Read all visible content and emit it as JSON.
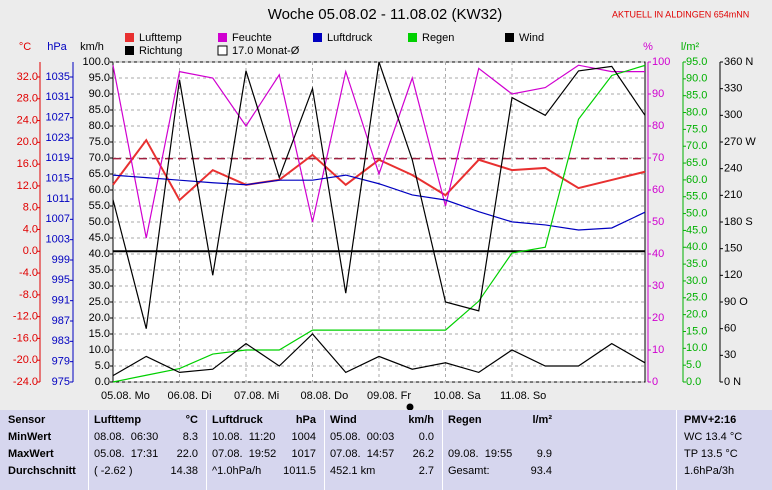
{
  "chart_data": {
    "type": "line",
    "title": "Woche 05.08.02 - 11.08.02 (KW32)",
    "note": "AKTUELL IN ALDINGEN 654mNN",
    "x": [
      0,
      0.5,
      1,
      1.5,
      2,
      2.5,
      3,
      3.5,
      4,
      4.5,
      5,
      5.5,
      6,
      6.5,
      7,
      7.5,
      8
    ],
    "xlim": [
      0,
      8
    ],
    "xticks": [
      {
        "value": 0,
        "label": "05.08. Mo"
      },
      {
        "value": 1,
        "label": "06.08. Di"
      },
      {
        "value": 2,
        "label": "07.08. Mi"
      },
      {
        "value": 3,
        "label": "08.08. Do"
      },
      {
        "value": 4,
        "label": "09.08. Fr"
      },
      {
        "value": 5,
        "label": "10.08. Sa"
      },
      {
        "value": 6,
        "label": "11.08. So"
      }
    ],
    "grid": true,
    "grid_axis": 2,
    "axes": [
      {
        "unit": "°C",
        "color": "#e00000",
        "lim": [
          -24,
          34.75
        ],
        "ticks": [
          {
            "value": 32,
            "label": "32.0"
          },
          {
            "value": 28,
            "label": "28.0"
          },
          {
            "value": 24,
            "label": "24.0"
          },
          {
            "value": 20,
            "label": "20.0"
          },
          {
            "value": 16,
            "label": "16.0"
          },
          {
            "value": 12,
            "label": "12.0"
          },
          {
            "value": 8,
            "label": "8.0"
          },
          {
            "value": 4,
            "label": "4.0"
          },
          {
            "value": 0,
            "label": "0.0"
          },
          {
            "value": -4,
            "label": "-4.0"
          },
          {
            "value": -8,
            "label": "-8.0"
          },
          {
            "value": -12,
            "label": "-12.0"
          },
          {
            "value": -16,
            "label": "-16.0"
          },
          {
            "value": -20,
            "label": "-20.0"
          },
          {
            "value": -24,
            "label": "-24.0"
          }
        ]
      },
      {
        "unit": "hPa",
        "color": "#0000c0",
        "lim": [
          975,
          1037.95
        ],
        "ticks": [
          1035,
          1031,
          1027,
          1023,
          1019,
          1015,
          1011,
          1007,
          1003,
          999,
          995,
          991,
          987,
          983,
          979,
          975
        ]
      },
      {
        "unit": "km/h",
        "color": "#000000",
        "lim": [
          0,
          100
        ],
        "ticks": [
          {
            "value": 100,
            "label": "100.0"
          },
          {
            "value": 95,
            "label": "95.0"
          },
          {
            "value": 90,
            "label": "90.0"
          },
          {
            "value": 85,
            "label": "85.0"
          },
          {
            "value": 80,
            "label": "80.0"
          },
          {
            "value": 75,
            "label": "75.0"
          },
          {
            "value": 70,
            "label": "70.0"
          },
          {
            "value": 65,
            "label": "65.0"
          },
          {
            "value": 60,
            "label": "60.0"
          },
          {
            "value": 55,
            "label": "55.0"
          },
          {
            "value": 50,
            "label": "50.0"
          },
          {
            "value": 45,
            "label": "45.0"
          },
          {
            "value": 40,
            "label": "40.0"
          },
          {
            "value": 35,
            "label": "35.0"
          },
          {
            "value": 30,
            "label": "30.0"
          },
          {
            "value": 25,
            "label": "25.0"
          },
          {
            "value": 20,
            "label": "20.0"
          },
          {
            "value": 15,
            "label": "15.0"
          },
          {
            "value": 10,
            "label": "10.0"
          },
          {
            "value": 5,
            "label": "5.0"
          },
          {
            "value": 0,
            "label": "0.0"
          }
        ]
      },
      {
        "unit": "%",
        "color": "#d000d0",
        "lim": [
          0,
          100
        ],
        "ticks": [
          100,
          90,
          80,
          70,
          60,
          50,
          40,
          30,
          20,
          10,
          0
        ]
      },
      {
        "unit": "l/m²",
        "color": "#00b000",
        "lim": [
          0,
          95
        ],
        "ticks": [
          {
            "value": 95,
            "label": "95.0"
          },
          {
            "value": 90,
            "label": "90.0"
          },
          {
            "value": 85,
            "label": "85.0"
          },
          {
            "value": 80,
            "label": "80.0"
          },
          {
            "value": 75,
            "label": "75.0"
          },
          {
            "value": 70,
            "label": "70.0"
          },
          {
            "value": 65,
            "label": "65.0"
          },
          {
            "value": 60,
            "label": "60.0"
          },
          {
            "value": 55,
            "label": "55.0"
          },
          {
            "value": 50,
            "label": "50.0"
          },
          {
            "value": 45,
            "label": "45.0"
          },
          {
            "value": 40,
            "label": "40.0"
          },
          {
            "value": 35,
            "label": "35.0"
          },
          {
            "value": 30,
            "label": "30.0"
          },
          {
            "value": 25,
            "label": "25.0"
          },
          {
            "value": 20,
            "label": "20.0"
          },
          {
            "value": 15,
            "label": "15.0"
          },
          {
            "value": 10,
            "label": "10.0"
          },
          {
            "value": 5,
            "label": "5.0"
          },
          {
            "value": 0,
            "label": "0.0"
          }
        ]
      },
      {
        "color": "#000000",
        "lim": [
          0,
          360
        ],
        "ticks": [
          {
            "value": 360,
            "label": "360 N"
          },
          330,
          300,
          {
            "value": 270,
            "label": "270 W"
          },
          240,
          210,
          {
            "value": 180,
            "label": "180 S"
          },
          150,
          120,
          {
            "value": 90,
            "label": "90 O"
          },
          60,
          30,
          {
            "value": 0,
            "label": "0 N"
          }
        ]
      }
    ],
    "series": [
      {
        "name": "Lufttemp",
        "color": "#e83030",
        "axis": 0,
        "values": [
          12.2,
          20.4,
          9.4,
          14.9,
          12.2,
          13.1,
          17.7,
          12.2,
          16.8,
          14.0,
          10.3,
          16.8,
          14.9,
          15.3,
          11.6,
          13.1,
          14.6
        ]
      },
      {
        "name": "Feuchte",
        "color": "#d000d0",
        "axis": 3,
        "values": [
          99,
          45,
          97,
          95,
          80,
          96,
          50,
          97,
          65,
          95,
          55,
          98,
          90,
          92,
          99,
          97,
          97
        ]
      },
      {
        "name": "Luftdruck",
        "color": "#0000c0",
        "axis": 1,
        "values": [
          1015.7,
          1015.2,
          1014.7,
          1014.2,
          1013.8,
          1014.7,
          1014.7,
          1015.7,
          1014.0,
          1011.8,
          1010.8,
          1008.5,
          1006.5,
          1005.9,
          1004.9,
          1005.3,
          1008.4
        ]
      },
      {
        "name": "Regen",
        "color": "#00d000",
        "axis": 4,
        "values": [
          0,
          2,
          4,
          8.3,
          9.5,
          9.5,
          15.4,
          15.4,
          15.4,
          15.4,
          15.4,
          24,
          38.3,
          40,
          78,
          91,
          94
        ]
      },
      {
        "name": "Wind",
        "color": "#000000",
        "axis": 2,
        "values": [
          2,
          8,
          3,
          4,
          12,
          5,
          15,
          3,
          8,
          4,
          6,
          3,
          10,
          5,
          5,
          12,
          6
        ]
      },
      {
        "name": "Richtung",
        "color": "#000000",
        "axis": 5,
        "values": [
          205,
          60,
          340,
          120,
          350,
          230,
          330,
          100,
          360,
          250,
          90,
          80,
          320,
          300,
          350,
          355,
          300
        ]
      }
    ],
    "reference": {
      "name": "17.0 Monat-Ø",
      "value": 17,
      "axis": 0,
      "color": "#a02040"
    },
    "zero_line": {
      "value": 0,
      "axis": 0
    }
  },
  "table": {
    "sensor": [
      "Sensor",
      "MinWert",
      "MaxWert",
      "Durchschnitt"
    ],
    "groups": [
      {
        "title": "Lufttemp",
        "unit": "°C",
        "rows": [
          [
            "08.08.  06:30",
            "8.3"
          ],
          [
            "05.08.  17:31",
            "22.0"
          ],
          [
            "( -2.62 )",
            "14.38"
          ]
        ]
      },
      {
        "title": "Luftdruck",
        "unit": "hPa",
        "rows": [
          [
            "10.08.  11:20",
            "1004"
          ],
          [
            "07.08.  19:52",
            "1017"
          ],
          [
            "^1.0hPa/h",
            "1011.5"
          ]
        ]
      },
      {
        "title": "Wind",
        "unit": "km/h",
        "rows": [
          [
            "05.08.  00:03",
            "0.0"
          ],
          [
            "07.08.  14:57",
            "26.2"
          ],
          [
            "452.1 km",
            "2.7"
          ]
        ]
      },
      {
        "title": "Regen",
        "unit": "l/m²",
        "rows": [
          null,
          [
            "09.08.  19:55",
            "9.9"
          ],
          [
            "Gesamt:",
            "93.4"
          ]
        ]
      }
    ],
    "pmv": [
      "PMV+2:16",
      "WC 13.4 °C",
      "TP 13.5 °C",
      "1.6hPa/3h"
    ]
  }
}
